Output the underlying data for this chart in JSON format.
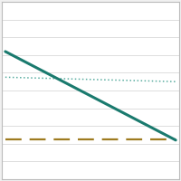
{
  "background_color": "#f0f0f0",
  "plot_bg_color": "#ffffff",
  "solid_line": {
    "x": [
      0.0,
      1.0
    ],
    "y": [
      0.72,
      0.22
    ],
    "color": "#1a7a6e",
    "linewidth": 2.2
  },
  "dotted_line": {
    "x": [
      0.0,
      1.0
    ],
    "y": [
      0.575,
      0.55
    ],
    "color": "#5aada0",
    "linewidth": 1.1,
    "dotsize": 1.5
  },
  "dashed_line": {
    "x": [
      0.0,
      1.0
    ],
    "y": [
      0.225,
      0.225
    ],
    "color": "#9e7b20",
    "linewidth": 1.6,
    "dash_on": 8,
    "dash_off": 4
  },
  "xlim": [
    -0.02,
    1.02
  ],
  "ylim": [
    0.0,
    1.0
  ],
  "grid_color": "#d0d0d0",
  "grid_linewidth": 0.5,
  "n_hlines": 10,
  "border_color": "#bbbbbb",
  "border_linewidth": 0.8
}
